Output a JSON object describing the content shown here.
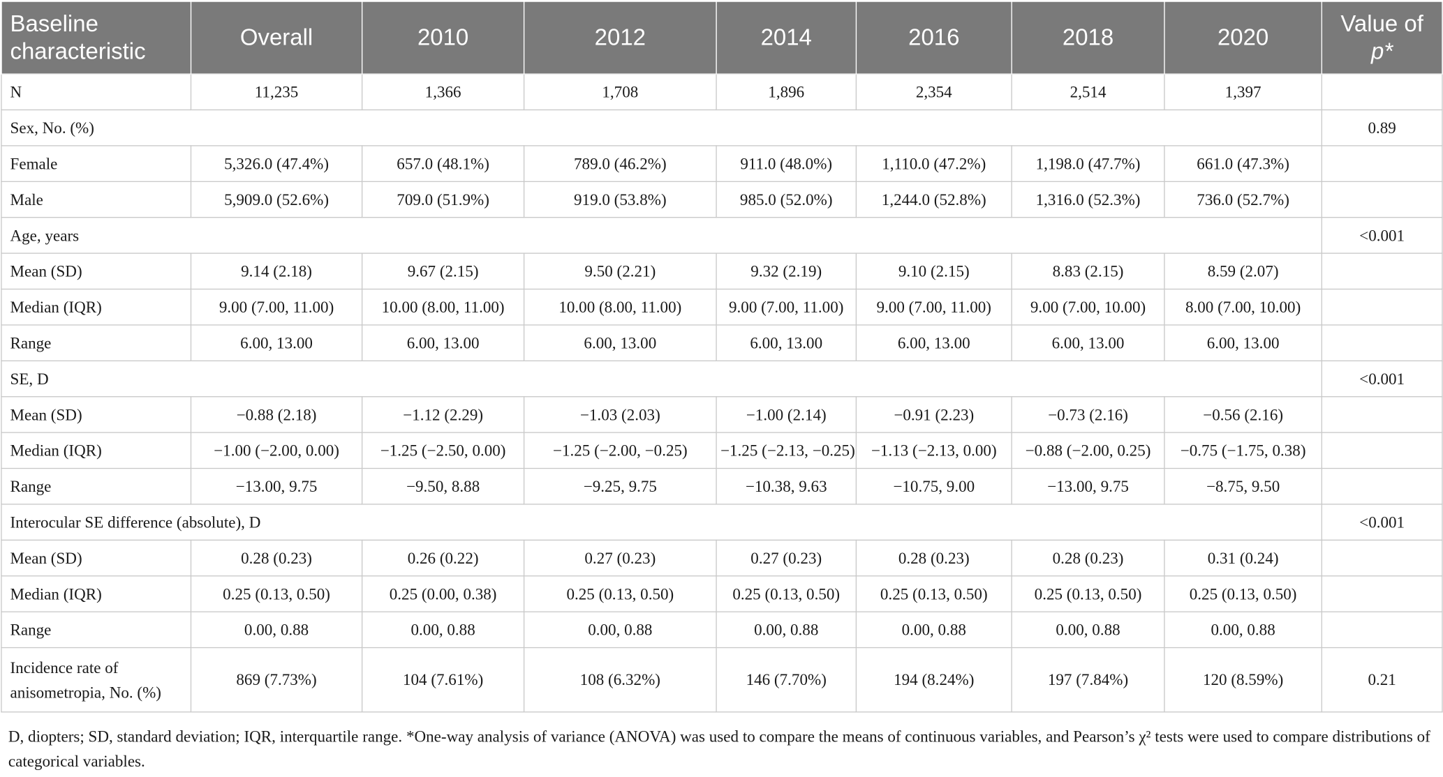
{
  "table": {
    "headers": {
      "characteristic": "Baseline characteristic",
      "overall": "Overall",
      "y2010": "2010",
      "y2012": "2012",
      "y2014": "2014",
      "y2016": "2016",
      "y2018": "2018",
      "y2020": "2020",
      "pvalue_prefix": "Value of",
      "pvalue_symbol": "p*"
    },
    "rows": [
      {
        "label": "N",
        "cells": [
          "11,235",
          "1,366",
          "1,708",
          "1,896",
          "2,354",
          "2,514",
          "1,397"
        ],
        "p": ""
      },
      {
        "section": "Sex, No. (%)",
        "p": "0.89"
      },
      {
        "label": "Female",
        "cells": [
          "5,326.0 (47.4%)",
          "657.0 (48.1%)",
          "789.0 (46.2%)",
          "911.0 (48.0%)",
          "1,110.0 (47.2%)",
          "1,198.0 (47.7%)",
          "661.0 (47.3%)"
        ],
        "p": ""
      },
      {
        "label": "Male",
        "cells": [
          "5,909.0 (52.6%)",
          "709.0 (51.9%)",
          "919.0 (53.8%)",
          "985.0 (52.0%)",
          "1,244.0 (52.8%)",
          "1,316.0 (52.3%)",
          "736.0 (52.7%)"
        ],
        "p": ""
      },
      {
        "section": "Age, years",
        "p": "<0.001"
      },
      {
        "label": "Mean (SD)",
        "cells": [
          "9.14 (2.18)",
          "9.67 (2.15)",
          "9.50 (2.21)",
          "9.32 (2.19)",
          "9.10 (2.15)",
          "8.83 (2.15)",
          "8.59 (2.07)"
        ],
        "p": ""
      },
      {
        "label": "Median (IQR)",
        "cells": [
          "9.00 (7.00, 11.00)",
          "10.00 (8.00, 11.00)",
          "10.00 (8.00, 11.00)",
          "9.00 (7.00, 11.00)",
          "9.00 (7.00, 11.00)",
          "9.00 (7.00, 10.00)",
          "8.00 (7.00, 10.00)"
        ],
        "p": ""
      },
      {
        "label": "Range",
        "cells": [
          "6.00, 13.00",
          "6.00, 13.00",
          "6.00, 13.00",
          "6.00, 13.00",
          "6.00, 13.00",
          "6.00, 13.00",
          "6.00, 13.00"
        ],
        "p": ""
      },
      {
        "section": "SE, D",
        "p": "<0.001"
      },
      {
        "label": "Mean (SD)",
        "cells": [
          "−0.88 (2.18)",
          "−1.12 (2.29)",
          "−1.03 (2.03)",
          "−1.00 (2.14)",
          "−0.91 (2.23)",
          "−0.73 (2.16)",
          "−0.56 (2.16)"
        ],
        "p": ""
      },
      {
        "label": "Median (IQR)",
        "cells": [
          "−1.00 (−2.00, 0.00)",
          "−1.25 (−2.50, 0.00)",
          "−1.25 (−2.00, −0.25)",
          "−1.25 (−2.13, −0.25)",
          "−1.13 (−2.13, 0.00)",
          "−0.88 (−2.00, 0.25)",
          "−0.75 (−1.75, 0.38)"
        ],
        "p": ""
      },
      {
        "label": "Range",
        "cells": [
          "−13.00, 9.75",
          "−9.50, 8.88",
          "−9.25, 9.75",
          "−10.38, 9.63",
          "−10.75, 9.00",
          "−13.00, 9.75",
          "−8.75, 9.50"
        ],
        "p": ""
      },
      {
        "section": "Interocular SE difference (absolute), D",
        "p": "<0.001"
      },
      {
        "label": "Mean (SD)",
        "cells": [
          "0.28 (0.23)",
          "0.26 (0.22)",
          "0.27 (0.23)",
          "0.27 (0.23)",
          "0.28 (0.23)",
          "0.28 (0.23)",
          "0.31 (0.24)"
        ],
        "p": ""
      },
      {
        "label": "Median (IQR)",
        "cells": [
          "0.25 (0.13, 0.50)",
          "0.25 (0.00, 0.38)",
          "0.25 (0.13, 0.50)",
          "0.25 (0.13, 0.50)",
          "0.25 (0.13, 0.50)",
          "0.25 (0.13, 0.50)",
          "0.25 (0.13, 0.50)"
        ],
        "p": ""
      },
      {
        "label": "Range",
        "cells": [
          "0.00, 0.88",
          "0.00, 0.88",
          "0.00, 0.88",
          "0.00, 0.88",
          "0.00, 0.88",
          "0.00, 0.88",
          "0.00, 0.88"
        ],
        "p": ""
      },
      {
        "label": "Incidence rate of anisometropia, No. (%)",
        "cells": [
          "869 (7.73%)",
          "104 (7.61%)",
          "108 (6.32%)",
          "146 (7.70%)",
          "194 (8.24%)",
          "197 (7.84%)",
          "120 (8.59%)"
        ],
        "p": "0.21",
        "tall": true
      }
    ]
  },
  "footnote": "D, diopters; SD, standard deviation; IQR, interquartile range. *One-way analysis of variance (ANOVA) was used to compare the means of continuous variables, and Pearson’s χ² tests were used to compare distributions of categorical variables."
}
